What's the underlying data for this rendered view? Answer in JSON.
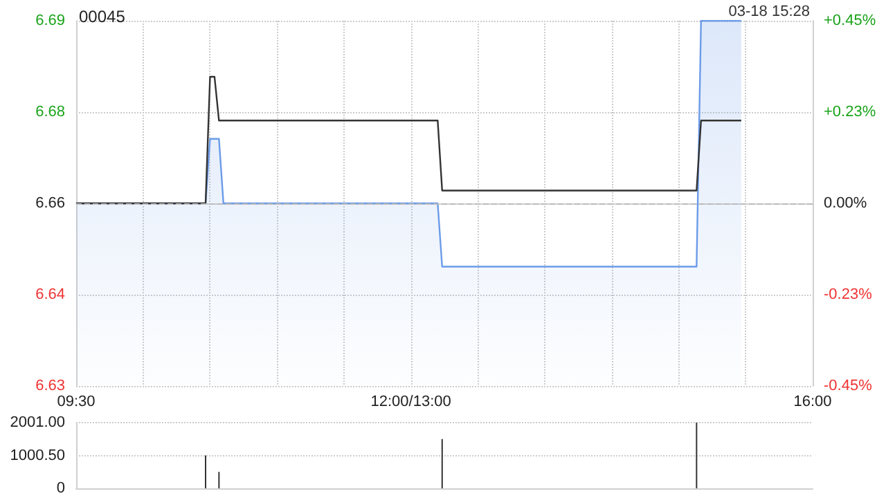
{
  "chart_data": [
    {
      "type": "line",
      "title": "00045",
      "annotations": [
        "03-18 15:28"
      ],
      "categories": [
        "09:30",
        null,
        null,
        null,
        null,
        null,
        null,
        null,
        null,
        null,
        null,
        null,
        null,
        null,
        null,
        null,
        null,
        null,
        null,
        null,
        null,
        null,
        null,
        null,
        null,
        null,
        null,
        null,
        null,
        null,
        null,
        null,
        null,
        null,
        null,
        null,
        null,
        null,
        null,
        null,
        null,
        null,
        null,
        null,
        null,
        null,
        null,
        null,
        null,
        null,
        null,
        null,
        null,
        null,
        null,
        null,
        null,
        null,
        null,
        null,
        null,
        null,
        null,
        null,
        null,
        null,
        null,
        null,
        null,
        null,
        null,
        null,
        null,
        null,
        null,
        "12:00/13:00",
        null,
        null,
        null,
        null,
        null,
        null,
        null,
        null,
        null,
        null,
        null,
        null,
        null,
        null,
        null,
        null,
        null,
        null,
        null,
        null,
        null,
        null,
        null,
        null,
        null,
        null,
        null,
        null,
        null,
        null,
        null,
        null,
        null,
        null,
        null,
        null,
        null,
        null,
        null,
        null,
        null,
        null,
        null,
        null,
        null,
        null,
        null,
        null,
        null,
        null,
        null,
        null,
        null,
        null,
        null,
        null,
        null,
        null,
        null,
        null,
        null,
        null,
        null,
        null,
        null,
        null,
        null,
        null,
        null,
        null,
        null,
        null,
        null,
        null,
        null,
        null,
        null,
        null,
        null,
        null,
        null,
        null,
        null,
        null,
        null,
        null,
        null,
        null,
        null,
        "16:00"
      ],
      "ylim": [
        6.63,
        6.69
      ],
      "yticks": [
        6.63,
        {
          "value": 6.645,
          "label": "6.64"
        },
        6.66,
        {
          "value": 6.675,
          "label": "6.68"
        },
        6.69
      ],
      "y2lim": [
        -0.45,
        0.45
      ],
      "y2ticks": [
        {
          "value": -0.45,
          "label": "-0.45%"
        },
        {
          "value": -0.225,
          "label": "-0.23%"
        },
        {
          "value": 0,
          "label": "0.00%"
        },
        {
          "value": 0.225,
          "label": "+0.23%"
        },
        {
          "value": 0.45,
          "label": "+0.45%"
        }
      ],
      "grid": true,
      "marker": "none",
      "ref_lines": [
        {
          "axis": "y",
          "value": 6.66,
          "line_style": "dashed",
          "color": "#bbbbbb"
        }
      ],
      "series": [
        {
          "type": "area",
          "color": "#6b9be8",
          "values": [
            6.66,
            6.66,
            6.66,
            6.66,
            6.66,
            6.66,
            6.66,
            6.66,
            6.66,
            6.66,
            6.66,
            6.66,
            6.66,
            6.66,
            6.66,
            6.66,
            6.66,
            6.66,
            6.66,
            6.66,
            6.66,
            6.66,
            6.66,
            6.66,
            6.66,
            6.66,
            6.66,
            6.66,
            6.66,
            6.66,
            6.6706,
            6.6706,
            6.6706,
            6.66,
            6.66,
            6.66,
            6.66,
            6.66,
            6.66,
            6.66,
            6.66,
            6.66,
            6.66,
            6.66,
            6.66,
            6.66,
            6.66,
            6.66,
            6.66,
            6.66,
            6.66,
            6.66,
            6.66,
            6.66,
            6.66,
            6.66,
            6.66,
            6.66,
            6.66,
            6.66,
            6.66,
            6.66,
            6.66,
            6.66,
            6.66,
            6.66,
            6.66,
            6.66,
            6.66,
            6.66,
            6.66,
            6.66,
            6.66,
            6.66,
            6.66,
            6.66,
            6.66,
            6.66,
            6.66,
            6.66,
            6.66,
            6.66,
            6.6496,
            6.6496,
            6.6496,
            6.6496,
            6.6496,
            6.6496,
            6.6496,
            6.6496,
            6.6496,
            6.6496,
            6.6496,
            6.6496,
            6.6496,
            6.6496,
            6.6496,
            6.6496,
            6.6496,
            6.6496,
            6.6496,
            6.6496,
            6.6496,
            6.6496,
            6.6496,
            6.6496,
            6.6496,
            6.6496,
            6.6496,
            6.6496,
            6.6496,
            6.6496,
            6.6496,
            6.6496,
            6.6496,
            6.6496,
            6.6496,
            6.6496,
            6.6496,
            6.6496,
            6.6496,
            6.6496,
            6.6496,
            6.6496,
            6.6496,
            6.6496,
            6.6496,
            6.6496,
            6.6496,
            6.6496,
            6.6496,
            6.6496,
            6.6496,
            6.6496,
            6.6496,
            6.6496,
            6.6496,
            6.6496,
            6.6496,
            6.6496,
            6.69,
            6.69,
            6.69,
            6.69,
            6.69,
            6.69,
            6.69,
            6.69,
            6.69,
            6.69,
            null,
            null,
            null,
            null,
            null,
            null,
            null,
            null,
            null,
            null,
            null,
            null,
            null,
            null,
            null,
            null
          ]
        },
        {
          "type": "line",
          "color": "#333333",
          "values": [
            6.66,
            6.66,
            6.66,
            6.66,
            6.66,
            6.66,
            6.66,
            6.66,
            6.66,
            6.66,
            6.66,
            6.66,
            6.66,
            6.66,
            6.66,
            6.66,
            6.66,
            6.66,
            6.66,
            6.66,
            6.66,
            6.66,
            6.66,
            6.66,
            6.66,
            6.66,
            6.66,
            6.66,
            6.66,
            6.66,
            6.6808,
            6.6808,
            6.6736,
            6.6736,
            6.6736,
            6.6736,
            6.6736,
            6.6736,
            6.6736,
            6.6736,
            6.6736,
            6.6736,
            6.6736,
            6.6736,
            6.6736,
            6.6736,
            6.6736,
            6.6736,
            6.6736,
            6.6736,
            6.6736,
            6.6736,
            6.6736,
            6.6736,
            6.6736,
            6.6736,
            6.6736,
            6.6736,
            6.6736,
            6.6736,
            6.6736,
            6.6736,
            6.6736,
            6.6736,
            6.6736,
            6.6736,
            6.6736,
            6.6736,
            6.6736,
            6.6736,
            6.6736,
            6.6736,
            6.6736,
            6.6736,
            6.6736,
            6.6736,
            6.6736,
            6.6736,
            6.6736,
            6.6736,
            6.6736,
            6.6736,
            6.6621,
            6.6621,
            6.6621,
            6.6621,
            6.6621,
            6.6621,
            6.6621,
            6.6621,
            6.6621,
            6.6621,
            6.6621,
            6.6621,
            6.6621,
            6.6621,
            6.6621,
            6.6621,
            6.6621,
            6.6621,
            6.6621,
            6.6621,
            6.6621,
            6.6621,
            6.6621,
            6.6621,
            6.6621,
            6.6621,
            6.6621,
            6.6621,
            6.6621,
            6.6621,
            6.6621,
            6.6621,
            6.6621,
            6.6621,
            6.6621,
            6.6621,
            6.6621,
            6.6621,
            6.6621,
            6.6621,
            6.6621,
            6.6621,
            6.6621,
            6.6621,
            6.6621,
            6.6621,
            6.6621,
            6.6621,
            6.6621,
            6.6621,
            6.6621,
            6.6621,
            6.6621,
            6.6621,
            6.6621,
            6.6621,
            6.6621,
            6.6621,
            6.6736,
            6.6736,
            6.6736,
            6.6736,
            6.6736,
            6.6736,
            6.6736,
            6.6736,
            6.6736,
            6.6736,
            null,
            null,
            null,
            null,
            null,
            null,
            null,
            null,
            null,
            null,
            null,
            null,
            null,
            null,
            null,
            null
          ]
        }
      ]
    },
    {
      "type": "bar",
      "tick_labels": "y",
      "grid": "y",
      "color": "#333333",
      "categories": [
        null,
        null,
        null,
        null,
        null,
        null,
        null,
        null,
        null,
        null,
        null,
        null,
        null,
        null,
        null,
        null,
        null,
        null,
        null,
        null,
        null,
        null,
        null,
        null,
        null,
        null,
        null,
        null,
        null,
        null,
        null,
        null,
        null,
        null,
        null,
        null,
        null,
        null,
        null,
        null,
        null,
        null,
        null,
        null,
        null,
        null,
        null,
        null,
        null,
        null,
        null,
        null,
        null,
        null,
        null,
        null,
        null,
        null,
        null,
        null,
        null,
        null,
        null,
        null,
        null,
        null,
        null,
        null,
        null,
        null,
        null,
        null,
        null,
        null,
        null,
        null,
        null,
        null,
        null,
        null,
        null,
        null,
        null,
        null,
        null,
        null,
        null,
        null,
        null,
        null,
        null,
        null,
        null,
        null,
        null,
        null,
        null,
        null,
        null,
        null,
        null,
        null,
        null,
        null,
        null,
        null,
        null,
        null,
        null,
        null,
        null,
        null,
        null,
        null,
        null,
        null,
        null,
        null,
        null,
        null,
        null,
        null,
        null,
        null,
        null,
        null,
        null,
        null,
        null,
        null,
        null,
        null,
        null,
        null,
        null,
        null,
        null,
        null,
        null,
        null,
        null,
        null,
        null,
        null,
        null,
        null,
        null,
        null,
        null,
        null,
        null,
        null,
        null,
        null,
        null,
        null,
        null,
        null,
        null,
        null,
        null,
        null,
        null,
        null,
        null,
        null
      ],
      "values": [
        null,
        null,
        null,
        null,
        null,
        null,
        null,
        null,
        null,
        null,
        null,
        null,
        null,
        null,
        null,
        null,
        null,
        null,
        null,
        null,
        null,
        null,
        null,
        null,
        null,
        null,
        null,
        null,
        null,
        1000,
        null,
        null,
        500,
        null,
        null,
        null,
        null,
        null,
        null,
        null,
        null,
        null,
        null,
        null,
        null,
        null,
        null,
        null,
        null,
        null,
        null,
        null,
        null,
        null,
        null,
        null,
        null,
        null,
        null,
        null,
        null,
        null,
        null,
        null,
        null,
        null,
        null,
        null,
        null,
        null,
        null,
        null,
        null,
        null,
        null,
        null,
        null,
        null,
        null,
        null,
        null,
        null,
        1500,
        null,
        null,
        null,
        null,
        null,
        null,
        null,
        null,
        null,
        null,
        null,
        null,
        null,
        null,
        null,
        null,
        null,
        null,
        null,
        null,
        null,
        null,
        null,
        null,
        null,
        null,
        null,
        null,
        null,
        null,
        null,
        null,
        null,
        null,
        null,
        null,
        null,
        null,
        null,
        null,
        null,
        null,
        null,
        null,
        null,
        null,
        null,
        null,
        null,
        null,
        null,
        null,
        null,
        null,
        null,
        null,
        2000,
        null,
        null,
        null,
        null,
        null,
        null,
        null,
        null,
        null,
        null,
        null,
        null,
        null,
        null,
        null,
        null,
        null,
        null,
        null,
        null,
        null,
        null,
        null,
        null,
        null,
        null
      ],
      "ylim": [
        0,
        2001
      ],
      "yticks": [
        0,
        {
          "value": 1000.5,
          "label": "1000.50"
        },
        {
          "value": 2001,
          "label": "2001.00"
        }
      ]
    }
  ]
}
